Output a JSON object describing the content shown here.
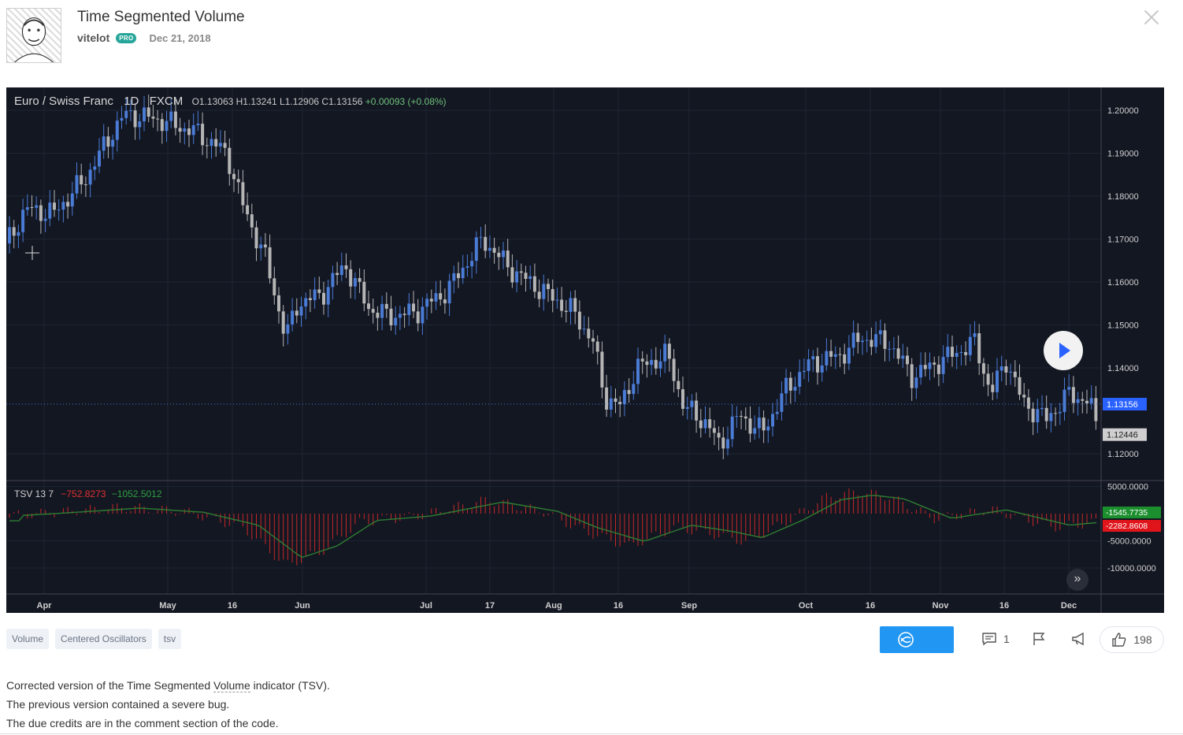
{
  "header": {
    "title": "Time Segmented Volume",
    "author": "vitelot",
    "badge": "PRO",
    "date": "Dec 21, 2018"
  },
  "chart": {
    "symbol": "Euro / Swiss Franc",
    "interval": "1D",
    "exchange": "FXCM",
    "ohlc": "O1.13063  H1.13241  L1.12906  C1.13156",
    "change": "+0.00093 (+0.08%)",
    "price_axis": [
      "1.20000",
      "1.19000",
      "1.18000",
      "1.17000",
      "1.16000",
      "1.15000",
      "1.14000",
      "1.12000"
    ],
    "price_levels": [
      1.2,
      1.19,
      1.18,
      1.17,
      1.16,
      1.15,
      1.14,
      1.12
    ],
    "last_price": "1.13156",
    "prev_price": "1.12446",
    "osc_axis": [
      "5000.0000",
      "-5000.0000",
      "-10000.0000"
    ],
    "osc_levels": [
      5000,
      -5000,
      -10000
    ],
    "osc_badge_green": "-1545.7735",
    "osc_badge_red": "-2282.8608",
    "time_axis": [
      "Apr",
      "May",
      "16",
      "Jun",
      "Jul",
      "17",
      "Aug",
      "16",
      "Sep",
      "Oct",
      "16",
      "Nov",
      "16",
      "Dec"
    ],
    "colors": {
      "up": "#4a7bd5",
      "down": "#b5b5b5",
      "bg": "#131722",
      "hist": "#c62828",
      "signal": "#2e7d32"
    }
  },
  "indicator": {
    "name": "TSV 13 7",
    "value1": "−752.8273",
    "value2": "−1052.5012"
  },
  "tags": [
    "Volume",
    "Centered Oscillators",
    "tsv"
  ],
  "actions": {
    "comments_count": "1",
    "likes_count": "198"
  },
  "description": {
    "line1_pre": "Corrected version of the Time Segmented ",
    "line1_link": "Volume",
    "line1_post": " indicator (TSV).",
    "line2": "The previous version contained a severe bug.",
    "line3": "The due credits are in the comment section of the code."
  }
}
